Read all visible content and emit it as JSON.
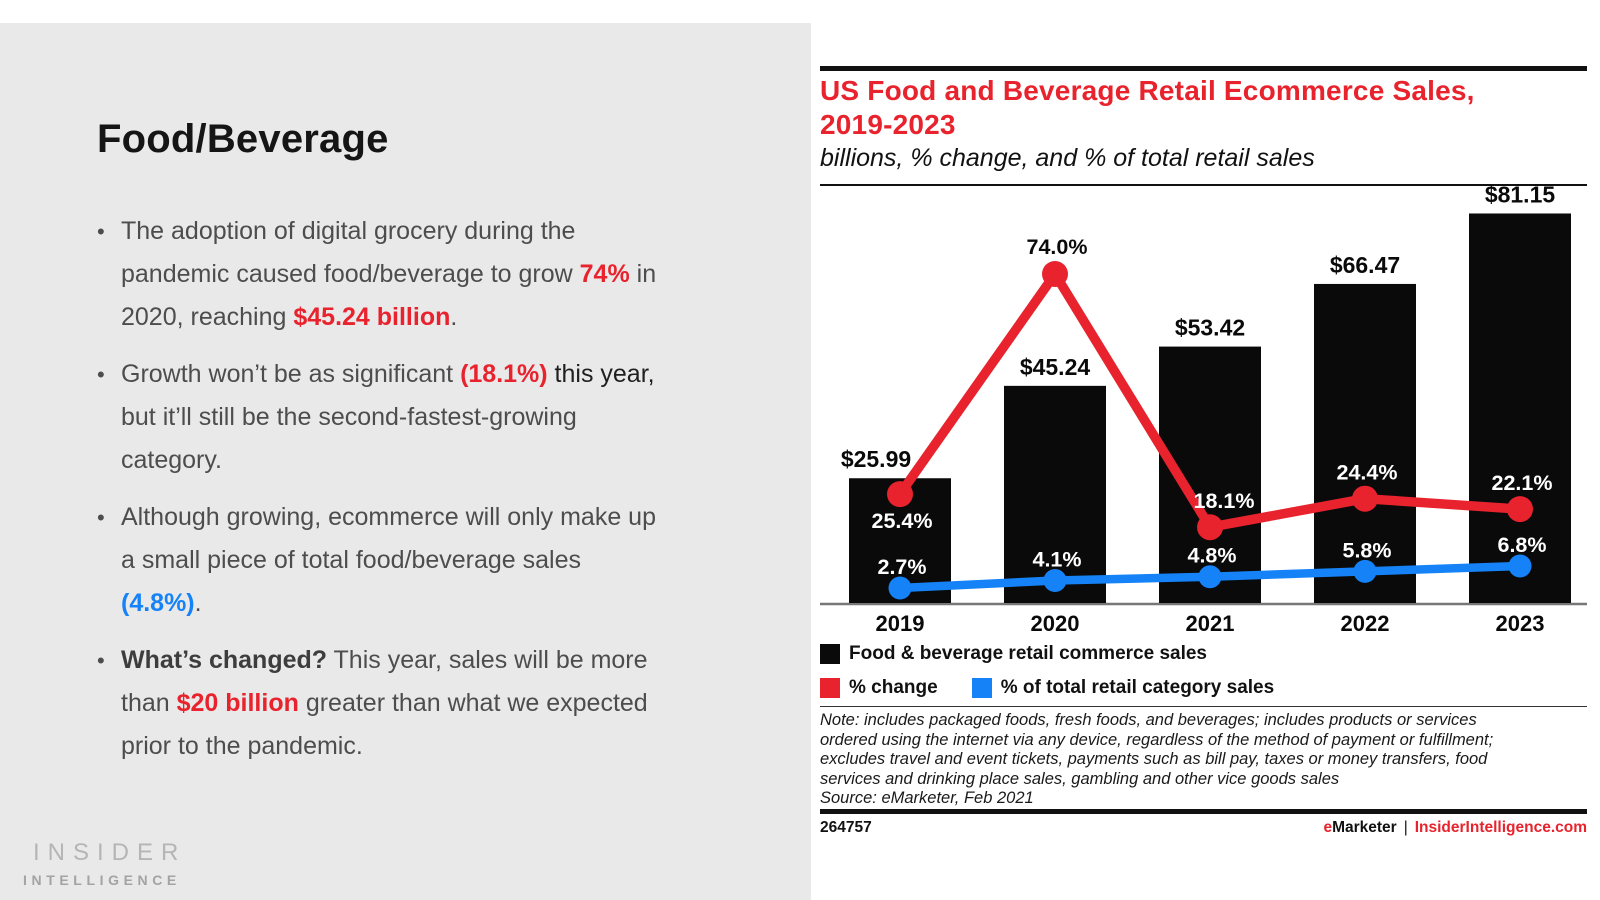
{
  "left_panel": {
    "title": "Food/Beverage",
    "bullets": [
      {
        "segments": [
          {
            "t": "The adoption of digital grocery during the pandemic caused food/beverage to grow ",
            "s": "normal"
          },
          {
            "t": "74%",
            "s": "red"
          },
          {
            "t": " in 2020, reaching ",
            "s": "normal"
          },
          {
            "t": "$45.24 billion",
            "s": "red"
          },
          {
            "t": ".",
            "s": "normal"
          }
        ]
      },
      {
        "segments": [
          {
            "t": "Growth won’t be as significant ",
            "s": "normal"
          },
          {
            "t": "(18.1%)",
            "s": "red"
          },
          {
            "t": " this year,",
            "s": "dark"
          },
          {
            "t": " but it’ll still be the second-fastest-growing category.",
            "s": "normal"
          }
        ]
      },
      {
        "segments": [
          {
            "t": "Although growing, ecommerce will only make up a small piece of total food/beverage sales ",
            "s": "normal"
          },
          {
            "t": "(4.8%)",
            "s": "blue"
          },
          {
            "t": ".",
            "s": "normal"
          }
        ]
      },
      {
        "segments": [
          {
            "t": "What’s changed?",
            "s": "bolddark"
          },
          {
            "t": " This year, sales will be more than ",
            "s": "normal"
          },
          {
            "t": "$20 billion",
            "s": "red"
          },
          {
            "t": " greater than what we expected prior to the pandemic.",
            "s": "normal"
          }
        ]
      }
    ],
    "logo_line1": "INSIDER",
    "logo_line2": "INTELLIGENCE"
  },
  "chart": {
    "title_line1": "US Food and Beverage Retail Ecommerce Sales,",
    "title_line2": "2019-2023",
    "subtitle": "billions, % change, and % of total retail sales",
    "legend": [
      {
        "label": "Food & beverage retail commerce sales"
      },
      {
        "label": "% change"
      },
      {
        "label": "% of total retail category sales"
      }
    ],
    "note_lines": [
      "Note: includes packaged foods, fresh foods, and beverages; includes products or services",
      "ordered using the internet via any device, regardless of the method of payment or fulfillment;",
      "excludes travel and event tickets, payments such as bill pay, taxes or money transfers, food",
      "services and drinking place sales, gambling and other vice goods sales",
      "Source: eMarketer, Feb 2021"
    ],
    "footer_id": "264757",
    "footer_brand_e": "e",
    "footer_brand_rest": "Marketer",
    "footer_sep": "|",
    "footer_site": "InsiderIntelligence.com"
  },
  "chart_data": {
    "type": "combo-bar-line",
    "title": "US Food and Beverage Retail Ecommerce Sales, 2019-2023",
    "subtitle": "billions, % change, and % of total retail sales",
    "categories": [
      "2019",
      "2020",
      "2021",
      "2022",
      "2023"
    ],
    "series": [
      {
        "name": "Food & beverage retail commerce sales",
        "type": "bar",
        "unit": "USD billions",
        "values": [
          25.99,
          45.24,
          53.42,
          66.47,
          81.15
        ],
        "labels": [
          "$25.99",
          "$45.24",
          "$53.42",
          "$66.47",
          "$81.15"
        ],
        "color": "#0a0a0a"
      },
      {
        "name": "% change",
        "type": "line",
        "values": [
          25.4,
          74.0,
          18.1,
          24.4,
          22.1
        ],
        "labels": [
          "25.4%",
          "74.0%",
          "18.1%",
          "24.4%",
          "22.1%"
        ],
        "color": "#e8232d"
      },
      {
        "name": "% of total retail category sales",
        "type": "line",
        "values": [
          2.7,
          4.1,
          4.8,
          5.8,
          6.8
        ],
        "labels": [
          "2.7%",
          "4.1%",
          "4.8%",
          "5.8%",
          "6.8%"
        ],
        "color": "#1583f7"
      }
    ],
    "legend_position": "bottom",
    "grid": false,
    "ylim_bars_billions": [
      0,
      88
    ],
    "ylim_pct_change": [
      0,
      80
    ]
  },
  "colors": {
    "red": "#e8232d",
    "blue": "#1583f7",
    "bar": "#0a0a0a",
    "panel_gray": "#e9e9e9",
    "body_text": "#4d4d4d"
  }
}
